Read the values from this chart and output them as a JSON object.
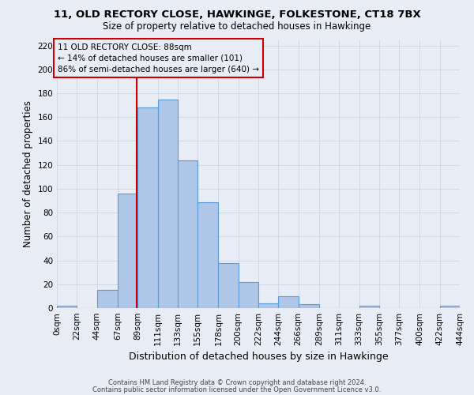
{
  "title": "11, OLD RECTORY CLOSE, HAWKINGE, FOLKESTONE, CT18 7BX",
  "subtitle": "Size of property relative to detached houses in Hawkinge",
  "xlabel": "Distribution of detached houses by size in Hawkinge",
  "ylabel": "Number of detached properties",
  "bar_edges": [
    0,
    22,
    44,
    67,
    89,
    111,
    133,
    155,
    178,
    200,
    222,
    244,
    266,
    289,
    311,
    333,
    355,
    377,
    400,
    422,
    444
  ],
  "bar_heights": [
    2,
    0,
    15,
    96,
    168,
    175,
    124,
    89,
    38,
    22,
    4,
    10,
    3,
    0,
    0,
    2,
    0,
    0,
    0,
    2
  ],
  "bar_color": "#aec6e8",
  "bar_edge_color": "#5b9bd5",
  "property_size": 88,
  "vline_color": "#cc0000",
  "annotation_line1": "11 OLD RECTORY CLOSE: 88sqm",
  "annotation_line2": "← 14% of detached houses are smaller (101)",
  "annotation_line3": "86% of semi-detached houses are larger (640) →",
  "annotation_box_edge": "#cc0000",
  "ylim": [
    0,
    225
  ],
  "yticks": [
    0,
    20,
    40,
    60,
    80,
    100,
    120,
    140,
    160,
    180,
    200,
    220
  ],
  "xtick_labels": [
    "0sqm",
    "22sqm",
    "44sqm",
    "67sqm",
    "89sqm",
    "111sqm",
    "133sqm",
    "155sqm",
    "178sqm",
    "200sqm",
    "222sqm",
    "244sqm",
    "266sqm",
    "289sqm",
    "311sqm",
    "333sqm",
    "355sqm",
    "377sqm",
    "400sqm",
    "422sqm",
    "444sqm"
  ],
  "footer_line1": "Contains HM Land Registry data © Crown copyright and database right 2024.",
  "footer_line2": "Contains public sector information licensed under the Open Government Licence v3.0.",
  "grid_color": "#d0d8e8",
  "background_color": "#e8edf5",
  "title_fontsize": 9.5,
  "subtitle_fontsize": 8.5,
  "ylabel_fontsize": 8.5,
  "xlabel_fontsize": 9,
  "tick_fontsize": 7.5,
  "annot_fontsize": 7.5,
  "footer_fontsize": 6.0
}
